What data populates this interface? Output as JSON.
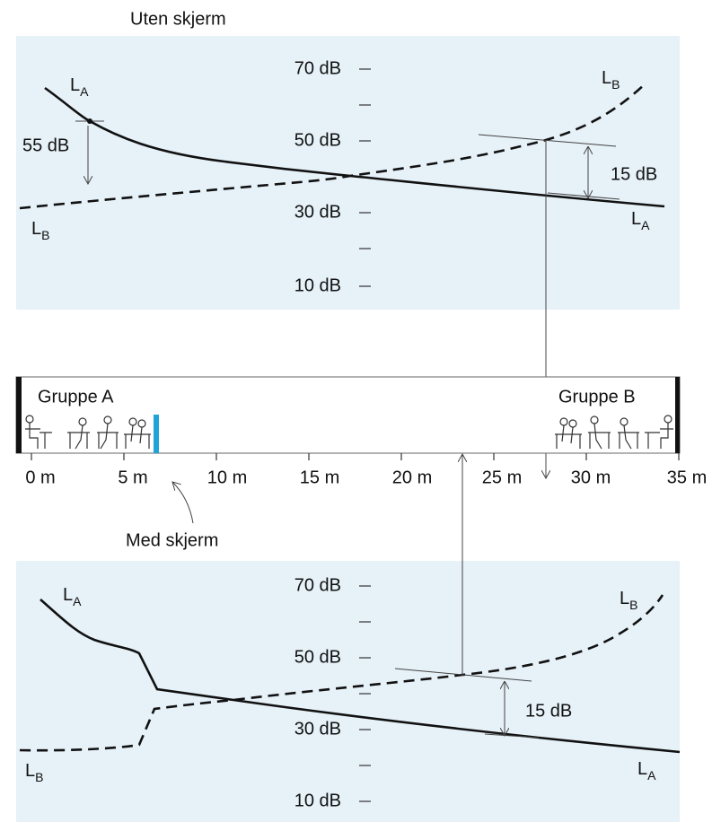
{
  "top_panel": {
    "title": "Uten skjerm",
    "level_labels": [
      "70 dB",
      "50 dB",
      "30 dB",
      "10 dB"
    ],
    "curve_labels": [
      {
        "letter": "L",
        "subscript": "A"
      },
      {
        "letter": "L",
        "subscript": "B"
      },
      {
        "letter": "L",
        "subscript": "B"
      },
      {
        "letter": "L",
        "subscript": "A"
      }
    ],
    "annotations": [
      "55 dB",
      "15 dB"
    ]
  },
  "room": {
    "group_a": "Gruppe A",
    "group_b": "Gruppe B",
    "distance_labels": [
      "0 m",
      "5 m",
      "10 m",
      "15 m",
      "20 m",
      "25 m",
      "30 m",
      "35 m"
    ],
    "screen_label": "Med skjerm"
  },
  "bottom_panel": {
    "level_labels": [
      "70 dB",
      "50 dB",
      "30 dB",
      "10 dB"
    ],
    "curve_labels": [
      {
        "letter": "L",
        "subscript": "A"
      },
      {
        "letter": "L",
        "subscript": "B"
      },
      {
        "letter": "L",
        "subscript": "B"
      },
      {
        "letter": "L",
        "subscript": "A"
      }
    ],
    "annotations": [
      "15 dB"
    ]
  }
}
